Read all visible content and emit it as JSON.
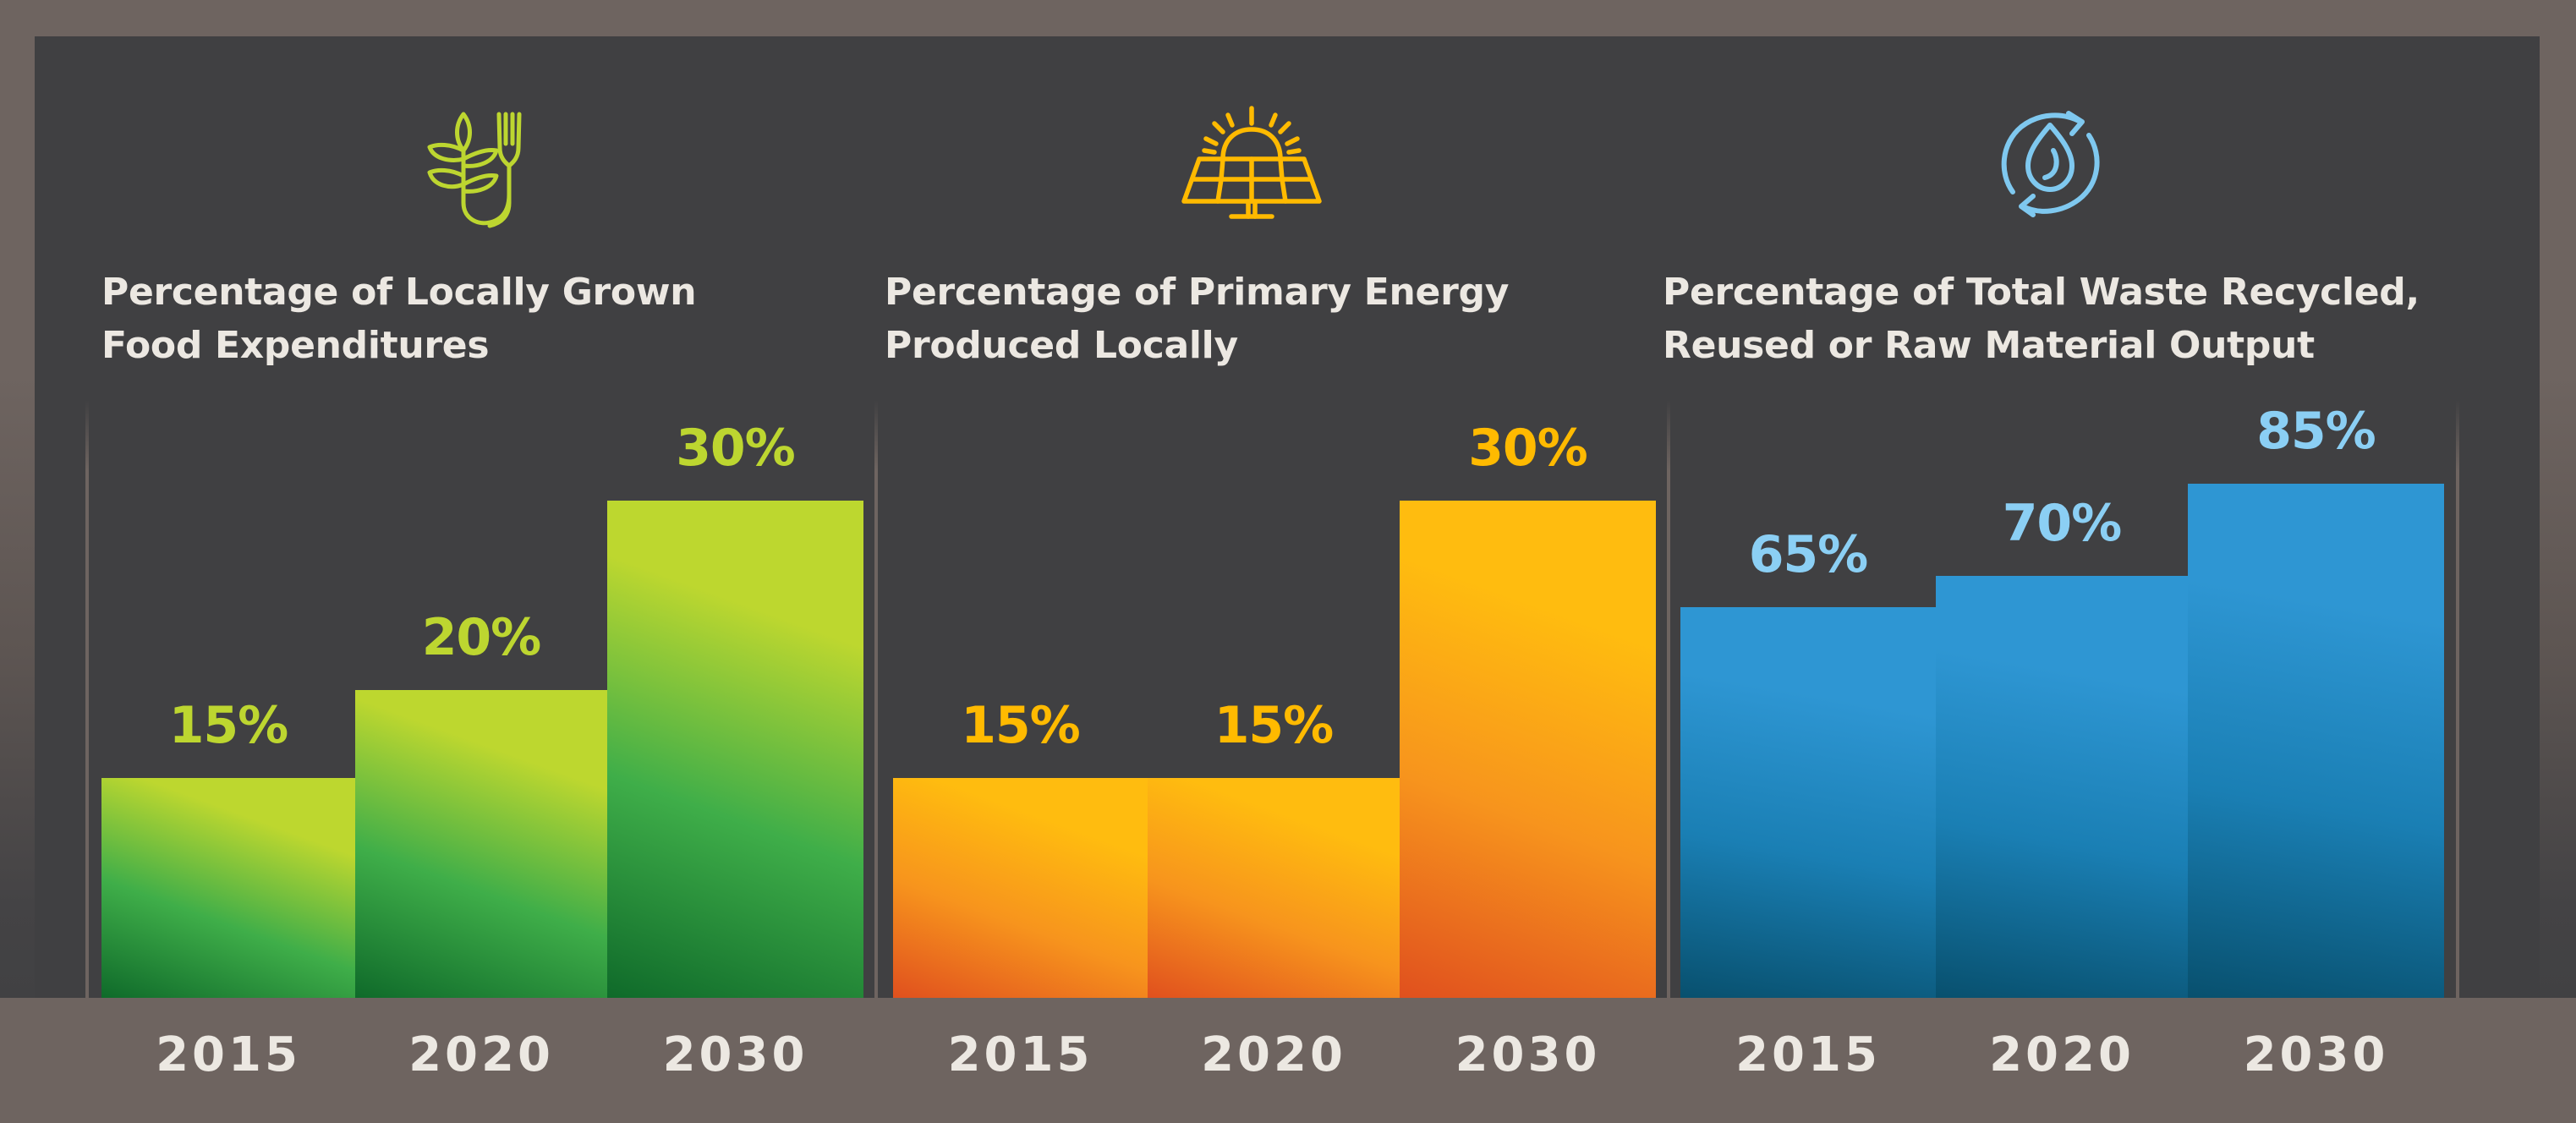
{
  "colors": {
    "background": "#6e6460",
    "panel": "#404042",
    "title_text": "#ece8e2",
    "year_text": "#ece8e2"
  },
  "chart_data": [
    {
      "type": "bar",
      "title": "Percentage of Locally Grown Food Expenditures",
      "title_lines": [
        "Percentage of Locally Grown",
        "Food Expenditures"
      ],
      "icon": "wheat-and-fork-icon",
      "categories": [
        "2015",
        "2020",
        "2030"
      ],
      "values": [
        15,
        20,
        30
      ],
      "data_labels": [
        "15%",
        "20%",
        "30%"
      ],
      "unit": "%",
      "xlabel": "",
      "ylabel": "",
      "grid": false,
      "accent_color": "#bdd630",
      "bar_gradient": [
        "#bdd72f",
        "#3fae49",
        "#0f6a2a"
      ]
    },
    {
      "type": "bar",
      "title": "Percentage of Primary Energy Produced Locally",
      "title_lines": [
        "Percentage of Primary Energy",
        "Produced Locally"
      ],
      "icon": "solar-panel-icon",
      "categories": [
        "2015",
        "2020",
        "2030"
      ],
      "values": [
        15,
        15,
        30
      ],
      "data_labels": [
        "15%",
        "15%",
        "30%"
      ],
      "unit": "%",
      "xlabel": "",
      "ylabel": "",
      "grid": false,
      "accent_color": "#ffba00",
      "bar_gradient": [
        "#ffbc0f",
        "#f7941d",
        "#e0501e"
      ]
    },
    {
      "type": "bar",
      "title": "Percentage of Total Waste Recycled, Reused or Raw Material Output",
      "title_lines": [
        "Percentage of Total Waste Recycled,",
        "Reused or Raw Material Output"
      ],
      "icon": "water-recycle-icon",
      "categories": [
        "2015",
        "2020",
        "2030"
      ],
      "values": [
        65,
        70,
        85
      ],
      "data_labels": [
        "65%",
        "70%",
        "85%"
      ],
      "unit": "%",
      "xlabel": "",
      "ylabel": "",
      "grid": false,
      "accent_color": "#8bcff4",
      "bar_gradient": [
        "#2e96d3",
        "#1a7fb4",
        "#08506e"
      ]
    }
  ]
}
